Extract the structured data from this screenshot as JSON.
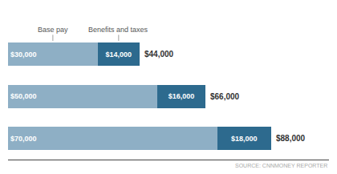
{
  "chart_data": {
    "type": "bar",
    "orientation": "horizontal",
    "stacked": true,
    "categories": [
      null,
      null,
      null
    ],
    "series": [
      {
        "name": "Base pay",
        "color": "#8eafc5",
        "values": [
          30000,
          50000,
          70000
        ],
        "value_labels": [
          "$30,000",
          "$50,000",
          "$70,000"
        ]
      },
      {
        "name": "Benefits and taxes",
        "color": "#2d6a8e",
        "values": [
          14000,
          16000,
          18000
        ],
        "value_labels": [
          "$14,000",
          "$16,000",
          "$18,000"
        ]
      }
    ],
    "totals": [
      44000,
      66000,
      88000
    ],
    "total_labels": [
      "$44,000",
      "$66,000",
      "$88,000"
    ],
    "annotations": [
      "SOURCE: CNNMONEY REPORTER"
    ],
    "xlim": [
      0,
      107360
    ],
    "data_labels": true,
    "tick_labels": false,
    "grid": false
  }
}
